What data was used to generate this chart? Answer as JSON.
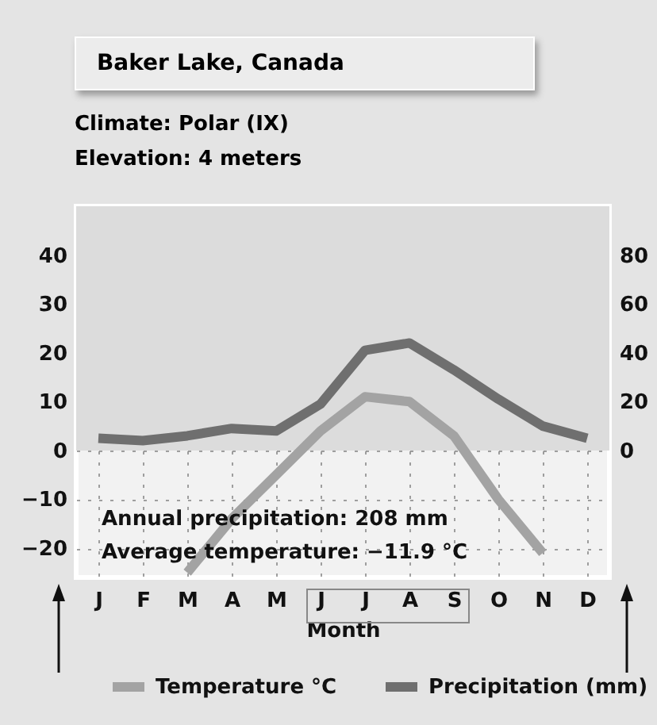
{
  "chart_data": {
    "type": "line",
    "title": "Baker Lake, Canada",
    "subtitle": "Climate: Polar (IX)\nElevation: 4 meters",
    "xlabel": "Month",
    "categories": [
      "J",
      "F",
      "M",
      "A",
      "M",
      "J",
      "J",
      "A",
      "S",
      "O",
      "N",
      "D"
    ],
    "series": [
      {
        "name": "Temperature °C",
        "color": "#a3a3a3",
        "values": [
          null,
          null,
          -25,
          -14,
          -5,
          4,
          11,
          10,
          3,
          -10,
          -21,
          null
        ]
      },
      {
        "name": "Precipitation (mm)",
        "color": "#6f6f6f",
        "axis": "y2",
        "values": [
          5,
          4,
          6,
          9,
          8,
          19,
          41,
          44,
          33,
          21,
          10,
          5
        ]
      }
    ],
    "ylim": [
      -26,
      50
    ],
    "yticks": [
      -20,
      -10,
      0,
      10,
      20,
      30,
      40
    ],
    "y2lim": [
      -52,
      100
    ],
    "y2ticks": [
      0,
      20,
      40,
      60,
      80
    ],
    "bands": [
      {
        "axis": "y",
        "from": 0,
        "to": 50,
        "color": "#dcdcdc"
      }
    ],
    "annotations": [
      "Annual precipitation: 208 mm",
      "Average temperature: −11.9 °C"
    ],
    "grid": true,
    "legend": "bottom"
  }
}
